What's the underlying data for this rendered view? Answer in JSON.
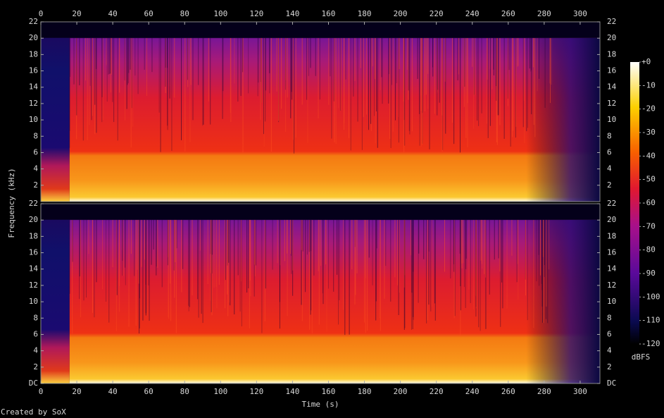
{
  "chart_data": [
    {
      "type": "spectrogram",
      "ylabel": "Frequency (kHz)",
      "xlim": [
        0,
        311
      ],
      "xticks": [
        0,
        20,
        40,
        60,
        80,
        100,
        120,
        140,
        160,
        180,
        200,
        220,
        240,
        260,
        280,
        300
      ],
      "ylim": [
        0,
        22
      ],
      "yticks": [
        2,
        4,
        6,
        8,
        10,
        12,
        14,
        16,
        18,
        20,
        22
      ],
      "colorbar": {
        "label": "dBFS",
        "lim": [
          -120,
          0
        ],
        "ticks": [
          {
            "value": 0,
            "label": "+0"
          },
          -10,
          -20,
          -30,
          -40,
          -50,
          -60,
          -70,
          -80,
          -90,
          -100,
          -110,
          -120
        ]
      }
    },
    {
      "type": "spectrogram",
      "xlabel": "Time (s)",
      "xlim": [
        0,
        311
      ],
      "xticks": [
        0,
        20,
        40,
        60,
        80,
        100,
        120,
        140,
        160,
        180,
        200,
        220,
        240,
        260,
        280,
        300
      ],
      "ylim": [
        0,
        22
      ],
      "yticks": [
        {
          "value": 0,
          "label": "DC"
        },
        2,
        4,
        6,
        8,
        10,
        12,
        14,
        16,
        18,
        20,
        22
      ]
    }
  ],
  "footer": "Created by SoX"
}
